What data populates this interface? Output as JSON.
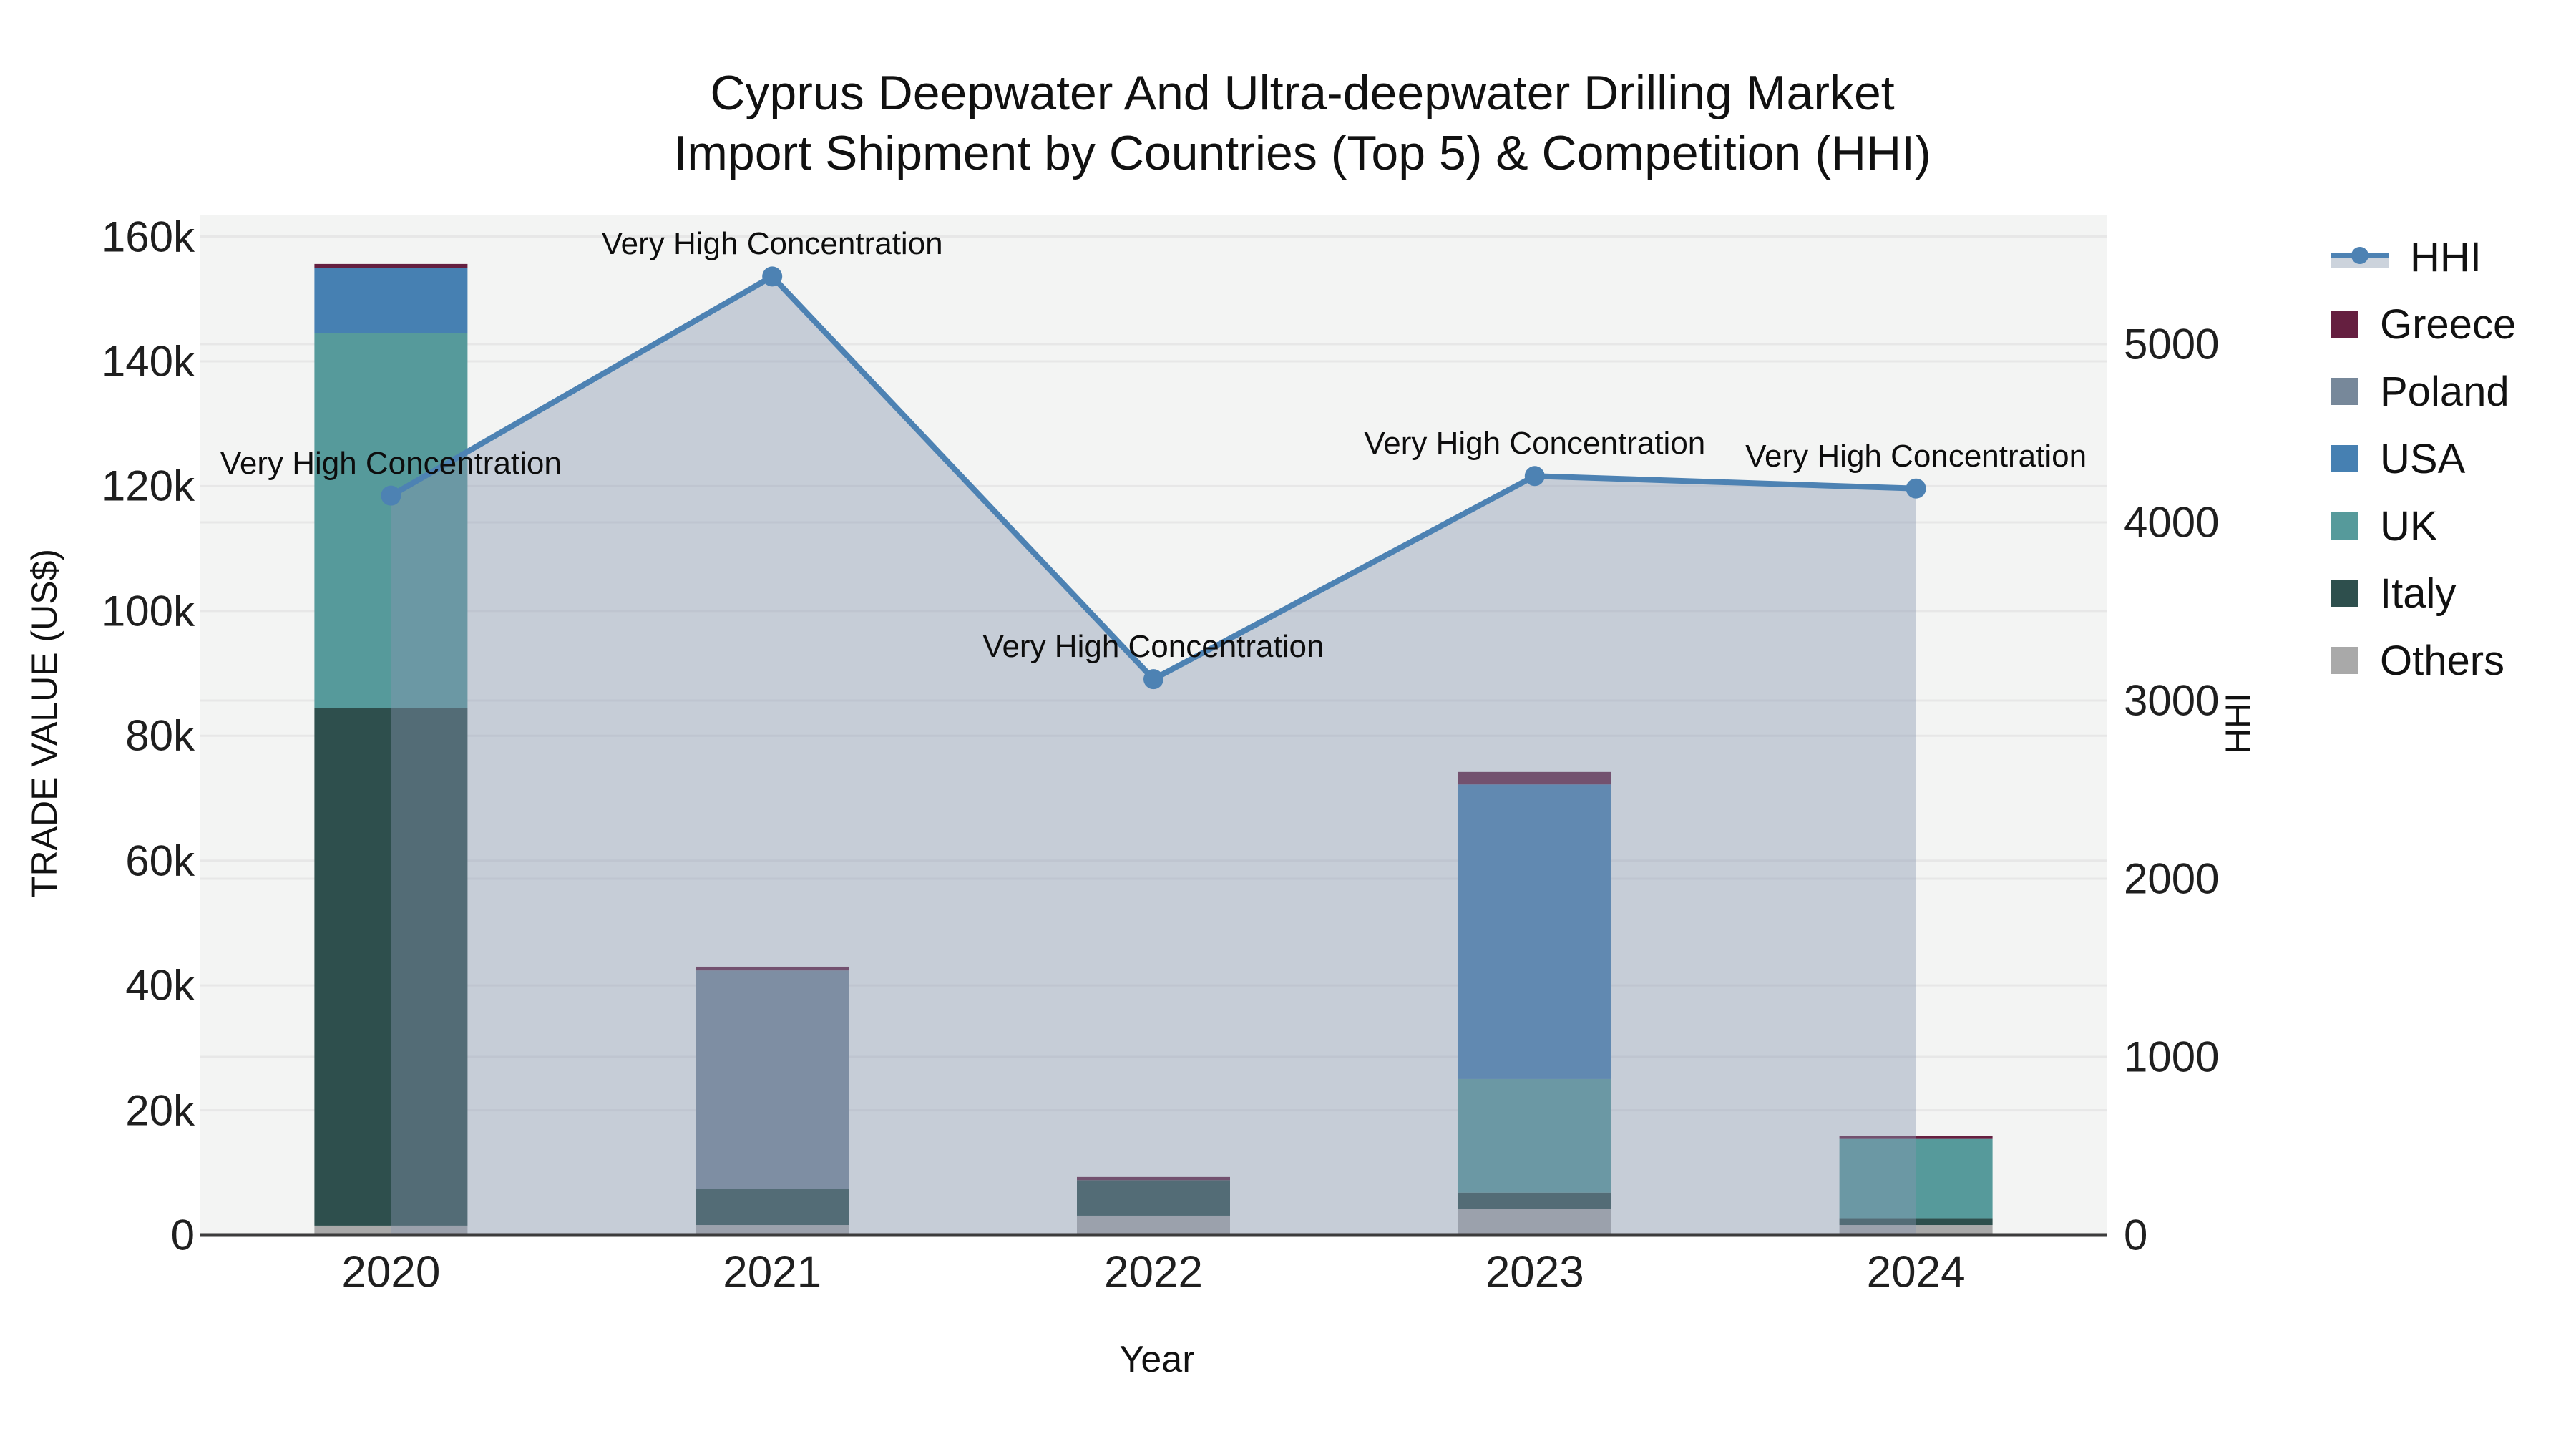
{
  "header": {
    "title_line1": "Cyprus Deepwater And Ultra-deepwater Drilling Market",
    "title_line2": "Import Shipment by Countries (Top 5) & Competition (HHI)"
  },
  "colors": {
    "hhi_line": "#4d82b3",
    "hhi_area": "rgba(137,150,177,0.42)",
    "greece": "#651f40",
    "poland": "#77889a",
    "usa": "#4680b2",
    "uk": "#569a9b",
    "italy": "#2e4f4d",
    "others": "#a9a9a9",
    "plot_bg": "#f3f4f3",
    "gridline": "#e7e7e7",
    "baseline": "#3c3c3c",
    "legend_band": "#ccd3dc"
  },
  "legend": {
    "items": [
      {
        "label": "HHI",
        "type": "line",
        "color": "#4d82b3"
      },
      {
        "label": "Greece",
        "type": "swatch",
        "color": "#651f40"
      },
      {
        "label": "Poland",
        "type": "swatch",
        "color": "#77889a"
      },
      {
        "label": "USA",
        "type": "swatch",
        "color": "#4680b2"
      },
      {
        "label": "UK",
        "type": "swatch",
        "color": "#569a9b"
      },
      {
        "label": "Italy",
        "type": "swatch",
        "color": "#2e4f4d"
      },
      {
        "label": "Others",
        "type": "swatch",
        "color": "#a9a9a9"
      }
    ]
  },
  "chart_data": {
    "type": "bar",
    "subtype": "stacked-bar-with-line",
    "title": "Cyprus Deepwater And Ultra-deepwater Drilling Market Import Shipment by Countries (Top 5) & Competition (HHI)",
    "categories": [
      "2020",
      "2021",
      "2022",
      "2023",
      "2024"
    ],
    "stack_order_bottom_to_top": [
      "Others",
      "Italy",
      "UK",
      "USA",
      "Poland",
      "Greece"
    ],
    "series": [
      {
        "name": "Others",
        "color": "#a9a9a9",
        "values": [
          1500,
          1600,
          3100,
          4200,
          1600
        ]
      },
      {
        "name": "Italy",
        "color": "#2e4f4d",
        "values": [
          83000,
          5800,
          5700,
          2600,
          1100
        ]
      },
      {
        "name": "UK",
        "color": "#569a9b",
        "values": [
          60000,
          0,
          0,
          18200,
          12700
        ]
      },
      {
        "name": "USA",
        "color": "#4680b2",
        "values": [
          10400,
          0,
          0,
          47200,
          0
        ]
      },
      {
        "name": "Poland",
        "color": "#77889a",
        "values": [
          0,
          35000,
          0,
          0,
          0
        ]
      },
      {
        "name": "Greece",
        "color": "#651f40",
        "values": [
          700,
          600,
          500,
          2000,
          500
        ]
      }
    ],
    "bar_totals": [
      155600,
      43000,
      9300,
      74200,
      15900
    ],
    "line_series": {
      "name": "HHI",
      "color": "#4d82b3",
      "values": [
        4150,
        5380,
        3120,
        4260,
        4190
      ],
      "area_fill": "rgba(137,150,177,0.42)",
      "axis": "right"
    },
    "annotations": [
      {
        "category": "2020",
        "text": "Very High Concentration"
      },
      {
        "category": "2021",
        "text": "Very High Concentration"
      },
      {
        "category": "2022",
        "text": "Very High Concentration"
      },
      {
        "category": "2023",
        "text": "Very High Concentration"
      },
      {
        "category": "2024",
        "text": "Very High Concentration"
      }
    ],
    "y_left": {
      "label": "TRADE VALUE (US$)",
      "tick_values": [
        0,
        20000,
        40000,
        60000,
        80000,
        100000,
        120000,
        140000,
        160000
      ],
      "tick_labels": [
        "0",
        "20k",
        "40k",
        "60k",
        "80k",
        "100k",
        "120k",
        "140k",
        "160k"
      ],
      "range": [
        0,
        163500
      ],
      "grid": true
    },
    "y_right": {
      "label": "HHI",
      "tick_values": [
        0,
        1000,
        2000,
        3000,
        4000,
        5000
      ],
      "tick_labels": [
        "0",
        "1000",
        "2000",
        "3000",
        "4000",
        "5000"
      ],
      "range": [
        0,
        5727
      ],
      "grid": true
    },
    "xlabel": "Year",
    "legend_position": "right"
  }
}
